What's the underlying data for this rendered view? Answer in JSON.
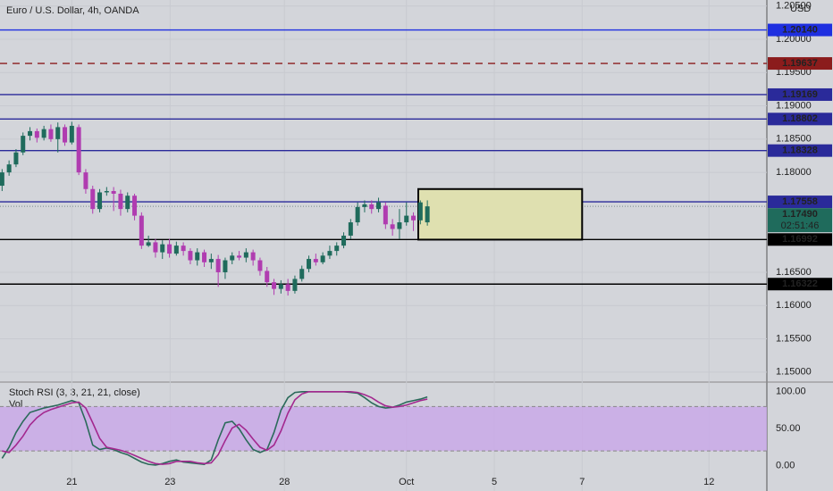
{
  "chart_data": {
    "type": "candlestick",
    "title": "Euro / U.S. Dollar, 4h, OANDA",
    "currency": "USD",
    "x": [
      0,
      1,
      2,
      3,
      4,
      5,
      6,
      7,
      8,
      9,
      10,
      11,
      12,
      13,
      14,
      15,
      16,
      17,
      18,
      19,
      20,
      21,
      22,
      23,
      24,
      25,
      26,
      27,
      28,
      29,
      30,
      31,
      32,
      33,
      34,
      35,
      36,
      37,
      38,
      39,
      40,
      41,
      42,
      43,
      44,
      45,
      46,
      47,
      48,
      49,
      50,
      51,
      52,
      53,
      54,
      55,
      56,
      57,
      58,
      59,
      60,
      61
    ],
    "open": [
      1.178,
      1.18,
      1.1812,
      1.183,
      1.1855,
      1.1862,
      1.1852,
      1.1865,
      1.185,
      1.1868,
      1.1845,
      1.1868,
      1.18,
      1.1775,
      1.1745,
      1.177,
      1.1772,
      1.1768,
      1.1745,
      1.1765,
      1.1735,
      1.169,
      1.1695,
      1.168,
      1.1692,
      1.1678,
      1.169,
      1.1682,
      1.1668,
      1.168,
      1.1665,
      1.167,
      1.165,
      1.1668,
      1.1675,
      1.1672,
      1.168,
      1.1668,
      1.1652,
      1.1635,
      1.1625,
      1.1632,
      1.1622,
      1.164,
      1.1655,
      1.167,
      1.1665,
      1.1675,
      1.1682,
      1.169,
      1.1705,
      1.1725,
      1.1748,
      1.1752,
      1.1745,
      1.175,
      1.1722,
      1.1715,
      1.1725,
      1.1735,
      1.1728,
      1.1725
    ],
    "high": [
      1.1805,
      1.1818,
      1.1835,
      1.186,
      1.1868,
      1.1866,
      1.187,
      1.1872,
      1.1875,
      1.1872,
      1.1876,
      1.1872,
      1.1805,
      1.178,
      1.1775,
      1.1778,
      1.1778,
      1.1774,
      1.177,
      1.1768,
      1.174,
      1.1705,
      1.17,
      1.1698,
      1.17,
      1.1696,
      1.1695,
      1.1686,
      1.1686,
      1.1684,
      1.1678,
      1.1676,
      1.1672,
      1.168,
      1.1682,
      1.1686,
      1.1684,
      1.1672,
      1.1658,
      1.164,
      1.1638,
      1.164,
      1.1645,
      1.166,
      1.1675,
      1.1678,
      1.168,
      1.169,
      1.1695,
      1.171,
      1.173,
      1.1755,
      1.1758,
      1.1758,
      1.1762,
      1.1755,
      1.173,
      1.1745,
      1.1755,
      1.174,
      1.1758,
      1.1758
    ],
    "low": [
      1.1772,
      1.1795,
      1.1808,
      1.1826,
      1.1848,
      1.1845,
      1.1848,
      1.1846,
      1.183,
      1.184,
      1.1842,
      1.1796,
      1.1768,
      1.1738,
      1.174,
      1.1765,
      1.1742,
      1.1735,
      1.174,
      1.1728,
      1.1685,
      1.1688,
      1.1672,
      1.167,
      1.1672,
      1.1675,
      1.1675,
      1.1662,
      1.166,
      1.1658,
      1.1655,
      1.1628,
      1.164,
      1.1662,
      1.1668,
      1.1665,
      1.166,
      1.1645,
      1.1628,
      1.1616,
      1.1618,
      1.1615,
      1.1618,
      1.1636,
      1.165,
      1.166,
      1.1662,
      1.167,
      1.1675,
      1.1686,
      1.17,
      1.172,
      1.174,
      1.1738,
      1.174,
      1.1715,
      1.1705,
      1.17,
      1.172,
      1.1712,
      1.1722,
      1.172
    ],
    "close": [
      1.18,
      1.1812,
      1.183,
      1.1855,
      1.1862,
      1.1852,
      1.1865,
      1.185,
      1.1868,
      1.1845,
      1.187,
      1.18,
      1.1775,
      1.1745,
      1.177,
      1.1772,
      1.1768,
      1.1745,
      1.1765,
      1.1735,
      1.169,
      1.1695,
      1.168,
      1.1692,
      1.1678,
      1.169,
      1.1682,
      1.1668,
      1.168,
      1.1665,
      1.167,
      1.165,
      1.1668,
      1.1675,
      1.1672,
      1.168,
      1.1668,
      1.1652,
      1.1635,
      1.1625,
      1.1632,
      1.1622,
      1.164,
      1.1655,
      1.167,
      1.1665,
      1.1675,
      1.1682,
      1.169,
      1.1705,
      1.1725,
      1.1748,
      1.1752,
      1.1745,
      1.1755,
      1.1722,
      1.1715,
      1.1725,
      1.1735,
      1.1728,
      1.1755,
      1.1749
    ],
    "up_color": "#1f6b5c",
    "down_color": "#b03cb0",
    "xlim": [
      -0.3,
      109.7
    ],
    "xticks": [
      {
        "value": 10,
        "label": "21"
      },
      {
        "value": 24.1,
        "label": "23"
      },
      {
        "value": 40.5,
        "label": "28"
      },
      {
        "value": 58,
        "label": "Oct"
      },
      {
        "value": 70.6,
        "label": "5"
      },
      {
        "value": 83.2,
        "label": "7"
      },
      {
        "value": 101.4,
        "label": "12"
      }
    ],
    "ylim": [
      1.1485,
      1.2059
    ],
    "yticks": [
      {
        "value": 1.205,
        "label": "1.20500"
      },
      {
        "value": 1.2,
        "label": "1.20000"
      },
      {
        "value": 1.195,
        "label": "1.19500"
      },
      {
        "value": 1.19,
        "label": "1.19000"
      },
      {
        "value": 1.185,
        "label": "1.18500"
      },
      {
        "value": 1.18,
        "label": "1.18000"
      },
      {
        "value": 1.165,
        "label": "1.16500"
      },
      {
        "value": 1.16,
        "label": "1.16000"
      },
      {
        "value": 1.155,
        "label": "1.15500"
      },
      {
        "value": 1.15,
        "label": "1.15000"
      }
    ],
    "levels": [
      {
        "price": {
          "value": 1.2014,
          "label": "1.20140"
        },
        "color": "#1e2fe0",
        "dashed": false
      },
      {
        "price": {
          "value": 1.19637,
          "label": "1.19637"
        },
        "color": "#8b1c1c",
        "dashed": true
      },
      {
        "price": {
          "value": 1.19169,
          "label": "1.19169"
        },
        "color": "#2a2a9a",
        "dashed": false
      },
      {
        "price": {
          "value": 1.18802,
          "label": "1.18802"
        },
        "color": "#2a2a9a",
        "dashed": false
      },
      {
        "price": {
          "value": 1.18328,
          "label": "1.18328"
        },
        "color": "#2a2a9a",
        "dashed": false
      },
      {
        "price": {
          "value": 1.17558,
          "label": "1.17558"
        },
        "color": "#2a2a9a",
        "dashed": false
      },
      {
        "price": {
          "value": 1.16992,
          "label": "1.16992"
        },
        "color": "#000000",
        "dashed": false
      },
      {
        "price": {
          "value": 1.16322,
          "label": "1.16322"
        },
        "color": "#000000",
        "dashed": false
      }
    ],
    "last_price": {
      "value": 1.1749,
      "label": "1.17490"
    },
    "countdown": "02:51:46",
    "zone": {
      "x": [
        59.7,
        83.2
      ],
      "y": [
        1.1775,
        1.1699
      ]
    },
    "indicator": {
      "title": "Stoch RSI (3, 3, 21, 21, close)",
      "volume_label": "Vol",
      "ylim": [
        -34,
        113
      ],
      "yticks": [
        {
          "value": 100,
          "label": "100.00"
        },
        {
          "value": 50,
          "label": "50.00"
        },
        {
          "value": 0,
          "label": "0.00"
        }
      ],
      "band": [
        20,
        80
      ],
      "band_color": "#c9a6e8",
      "series": [
        {
          "name": "K",
          "color": "#2b6a5a",
          "values": [
            10,
            25,
            45,
            60,
            72,
            75,
            78,
            80,
            82,
            85,
            88,
            85,
            60,
            28,
            22,
            24,
            22,
            18,
            15,
            10,
            5,
            2,
            1,
            3,
            6,
            8,
            5,
            4,
            3,
            2,
            8,
            35,
            58,
            60,
            50,
            35,
            22,
            18,
            22,
            45,
            75,
            92,
            99,
            100,
            100,
            100,
            100,
            100,
            100,
            100,
            99,
            98,
            92,
            85,
            80,
            78,
            79,
            82,
            86,
            88,
            90,
            93
          ]
        },
        {
          "name": "D",
          "color": "#a3288f",
          "values": [
            20,
            18,
            28,
            40,
            55,
            65,
            72,
            76,
            79,
            82,
            85,
            86,
            78,
            58,
            37,
            25,
            23,
            21,
            18,
            14,
            10,
            6,
            3,
            2,
            3,
            6,
            6,
            6,
            4,
            3,
            4,
            15,
            34,
            51,
            56,
            48,
            36,
            25,
            21,
            28,
            47,
            71,
            89,
            97,
            100,
            100,
            100,
            100,
            100,
            100,
            100,
            99,
            96,
            92,
            86,
            81,
            79,
            80,
            82,
            85,
            88,
            90
          ]
        }
      ]
    }
  }
}
